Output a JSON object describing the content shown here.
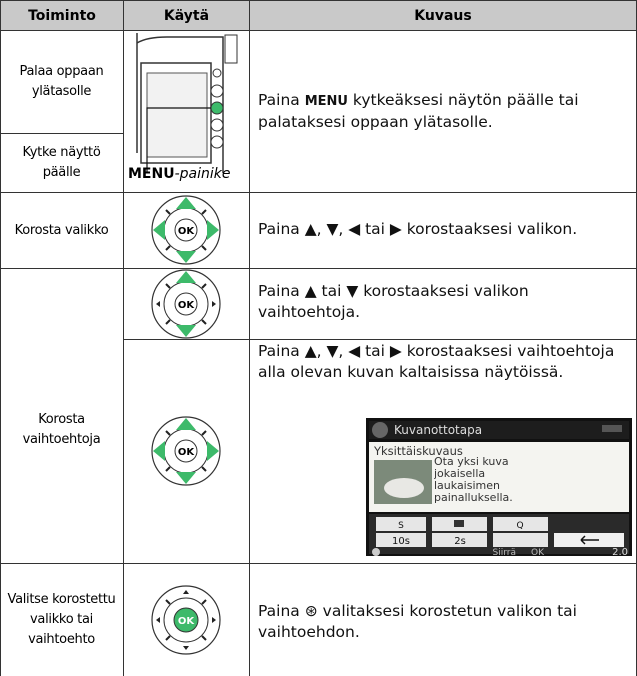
{
  "header": {
    "col1": "Toiminto",
    "col2": "Käytä",
    "col3": "Kuvaus"
  },
  "rows": [
    {
      "labels": [
        "Palaa oppaan ylätasolle",
        "Kytke näyttö päälle"
      ],
      "caption": {
        "button": "MENU",
        "suffix": "-painike"
      },
      "desc": {
        "before": "Paina ",
        "button": "MENU",
        "after": " kytkeäksesi näytön päälle tai palataksesi oppaan ylätasolle."
      }
    },
    {
      "label": "Korosta valikko",
      "desc": "Paina ▲, ▼, ◀ tai ▶ korostaaksesi valikon."
    },
    {
      "label": "Korosta vaihtoehtoja",
      "sub": [
        {
          "desc": "Paina ▲ tai ▼ korostaaksesi valikon vaihtoehtoja."
        },
        {
          "desc": "Paina ▲, ▼, ◀ tai ▶ korostaaksesi vaihtoehtoja alla olevan kuvan kaltaisissa näytöissä."
        }
      ],
      "screen": {
        "title": "Kuvanottotapa",
        "mode": "Yksittäiskuvaus",
        "text": "Ota yksi kuva jokaisella laukaisimen painalluksella.",
        "single": "S",
        "quiet": "Q",
        "timer": "10s",
        "remote": "2s",
        "move": "Siirrä",
        "ok": "OK",
        "zoom": "2.0"
      }
    },
    {
      "label": "Valitse korostettu valikko tai vaihtoehto",
      "desc": {
        "before": "Paina ",
        "symbol": "⊛",
        "after": " valitaksesi korostetun valikon tai vaihtoehdon."
      }
    }
  ],
  "icon_ok": "OK"
}
